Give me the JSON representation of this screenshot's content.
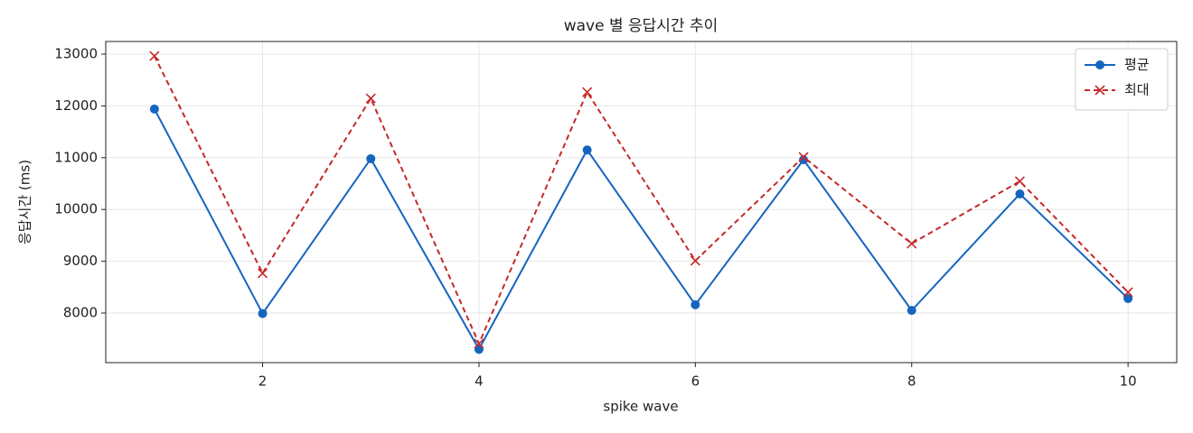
{
  "chart_data": {
    "type": "line",
    "title": "wave 별 응답시간 추이",
    "x_label": "spike wave",
    "y_label": "응답시간 (ms)",
    "x": [
      1,
      2,
      3,
      4,
      5,
      6,
      7,
      8,
      9,
      10
    ],
    "series": [
      {
        "name": "평균",
        "color": "#1565c0",
        "marker": "circle",
        "dash": false,
        "values": [
          11940,
          7990,
          10980,
          7300,
          11150,
          8160,
          10960,
          8050,
          10300,
          8280
        ]
      },
      {
        "name": "최대",
        "color": "#c62828",
        "marker": "x",
        "dash": true,
        "values": [
          12965,
          8767,
          12146,
          7408,
          12268,
          9010,
          11014,
          9341,
          10544,
          8401
        ]
      }
    ],
    "xlim": [
      0.55,
      10.45
    ],
    "ylim": [
      7042,
      13244
    ],
    "xticks": [
      2,
      4,
      6,
      8,
      10
    ],
    "yticks": [
      8000,
      9000,
      10000,
      11000,
      12000,
      13000
    ],
    "grid": true,
    "legend": "upper right"
  }
}
